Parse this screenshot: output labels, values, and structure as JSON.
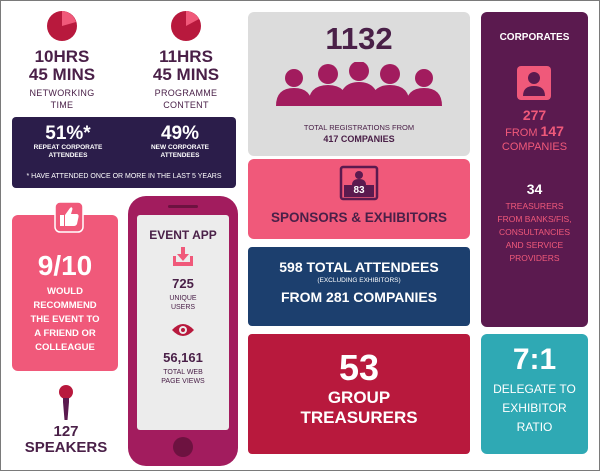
{
  "networking": {
    "value": "10HRS 45 MINS",
    "line1": "10HRS",
    "line2": "45 MINS",
    "label_line1": "NETWORKING",
    "label_line2": "TIME"
  },
  "programme": {
    "value": "11HRS 45 MINS",
    "line1": "11HRS",
    "line2": "45 MINS",
    "label_line1": "PROGRAMME",
    "label_line2": "CONTENT"
  },
  "repeat": {
    "left_value": "51%*",
    "left_label_line1": "REPEAT CORPORATE",
    "left_label_line2": "ATTENDEES",
    "right_value": "49%",
    "right_label_line1": "NEW CORPORATE",
    "right_label_line2": "ATTENDEES",
    "footnote": "* HAVE ATTENDED ONCE OR MORE IN THE LAST 5 YEARS"
  },
  "recommend": {
    "value": "9/10",
    "l1": "WOULD",
    "l2": "RECOMMEND",
    "l3": "THE EVENT TO",
    "l4": "A FRIEND OR",
    "l5": "COLLEAGUE"
  },
  "speakers": {
    "label": "127 SPEAKERS",
    "line1": "127",
    "line2": "SPEAKERS"
  },
  "event_app": {
    "title": "EVENT APP",
    "users_value": "725",
    "users_l1": "UNIQUE",
    "users_l2": "USERS",
    "views_value": "56,161",
    "views_l1": "TOTAL WEB",
    "views_l2": "PAGE VIEWS"
  },
  "registrations": {
    "value": "1132",
    "label_line1": "TOTAL REGISTRATIONS FROM",
    "label_line2": "417 COMPANIES"
  },
  "sponsors": {
    "badge": "83",
    "label": "SPONSORS & EXHIBITORS"
  },
  "attendees": {
    "line1": "598 TOTAL ATTENDEES",
    "line2": "(EXCLUDING EXHIBITORS)",
    "line3": "FROM 281 COMPANIES"
  },
  "group_treasurers": {
    "value": "53",
    "line1": "GROUP",
    "line2": "TREASURERS"
  },
  "corporates": {
    "title": "CORPORATES",
    "count": "277",
    "from_word": "FROM",
    "companies_count": "147",
    "companies_word": "COMPANIES",
    "treasurers_value": "34",
    "t_l1": "TREASURERS",
    "t_l2": "FROM BANKS/FIS,",
    "t_l3": "CONSULTANCIES",
    "t_l4": "AND SERVICE",
    "t_l5": "PROVIDERS"
  },
  "ratio": {
    "value": "7:1",
    "l1": "DELEGATE TO",
    "l2": "EXHIBITOR",
    "l3": "RATIO"
  },
  "colors": {
    "plum": "#5b1a4f",
    "pink": "#f0597a",
    "navy": "#2b1d4a",
    "blue": "#1c3f6e",
    "red": "#b8193d",
    "teal": "#2fa9b4",
    "grey": "#dcdcdc",
    "phone": "#a21c5e"
  }
}
